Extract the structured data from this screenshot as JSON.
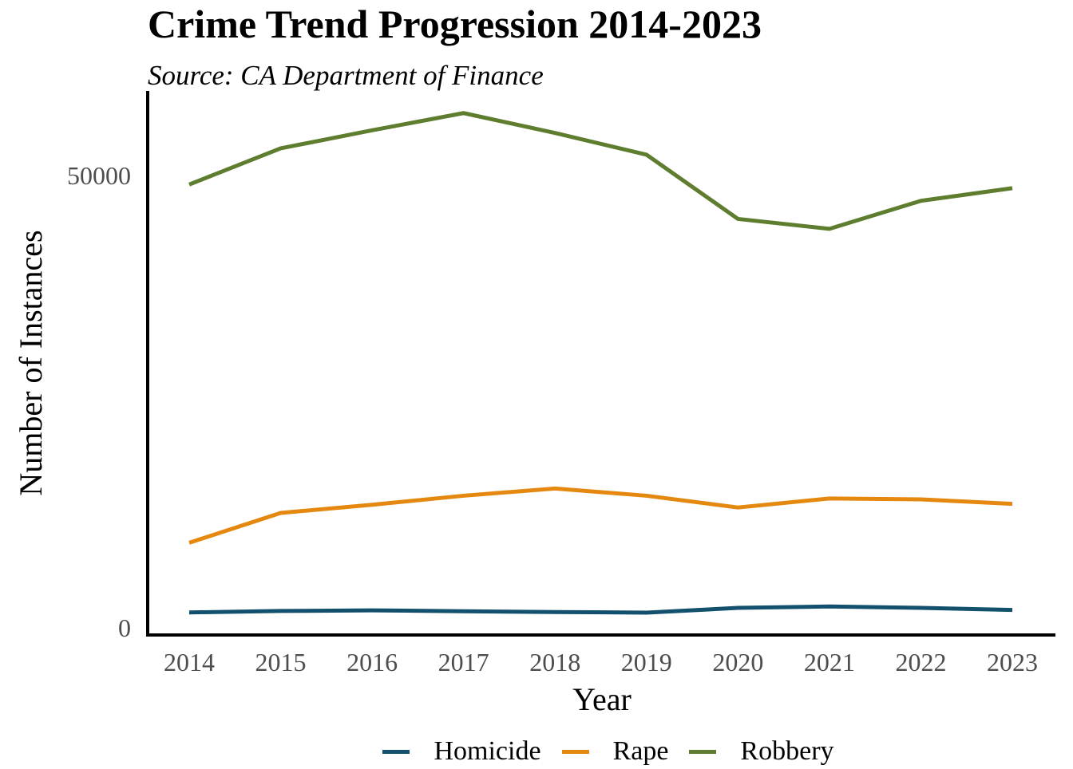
{
  "chart_data": {
    "type": "line",
    "title": "Crime Trend Progression 2014-2023",
    "subtitle": "Source: CA Department of Finance",
    "xlabel": "Year",
    "ylabel": "Number of Instances",
    "x": [
      "2014",
      "2015",
      "2016",
      "2017",
      "2018",
      "2019",
      "2020",
      "2021",
      "2022",
      "2023"
    ],
    "y_ticks": [
      "0",
      "50000"
    ],
    "ylim": [
      0,
      60000
    ],
    "grid": false,
    "legend_position": "bottom",
    "series": [
      {
        "name": "Homicide",
        "color": "#12506e",
        "values": [
          1700,
          1860,
          1930,
          1830,
          1740,
          1680,
          2200,
          2360,
          2200,
          1970
        ]
      },
      {
        "name": "Rape",
        "color": "#e5880f",
        "values": [
          9400,
          12700,
          13600,
          14600,
          15400,
          14600,
          13300,
          14300,
          14200,
          13700
        ]
      },
      {
        "name": "Robbery",
        "color": "#5e7d2e",
        "values": [
          49000,
          53000,
          55000,
          56900,
          54700,
          52300,
          45200,
          44100,
          47200,
          48600
        ]
      }
    ]
  }
}
